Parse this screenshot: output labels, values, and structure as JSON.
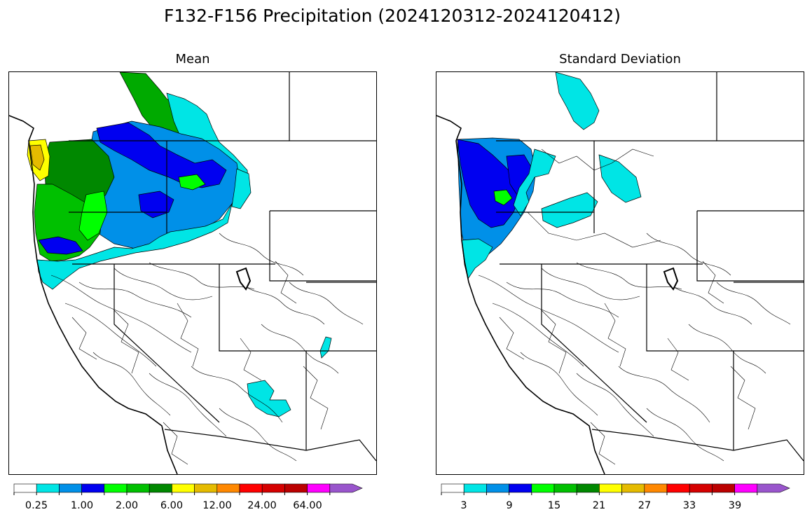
{
  "title": "F132-F156 Precipitation (2024120312-2024120412)",
  "panels": [
    {
      "title": "Mean",
      "colorbar": {
        "labels": [
          "0.25",
          "1.00",
          "2.00",
          "6.00",
          "12.00",
          "24.00",
          "64.00"
        ]
      }
    },
    {
      "title": "Standard Deviation",
      "colorbar": {
        "labels": [
          "3",
          "9",
          "15",
          "21",
          "27",
          "33",
          "39"
        ]
      }
    }
  ],
  "colors": [
    "#ffffff",
    "#00e5e5",
    "#0090e8",
    "#0000f0",
    "#00ff00",
    "#00c000",
    "#008800",
    "#ffff00",
    "#e5bb00",
    "#ff8800",
    "#ff0000",
    "#d50000",
    "#bb0000",
    "#ff00ff",
    "#9955cc"
  ]
}
